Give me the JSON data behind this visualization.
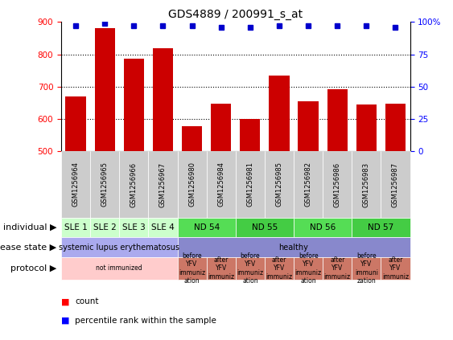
{
  "title": "GDS4889 / 200991_s_at",
  "samples": [
    "GSM1256964",
    "GSM1256965",
    "GSM1256966",
    "GSM1256967",
    "GSM1256980",
    "GSM1256984",
    "GSM1256981",
    "GSM1256985",
    "GSM1256982",
    "GSM1256986",
    "GSM1256983",
    "GSM1256987"
  ],
  "counts": [
    670,
    882,
    787,
    820,
    578,
    648,
    600,
    735,
    656,
    693,
    645,
    648
  ],
  "percentiles": [
    97,
    99,
    97,
    97,
    97,
    96,
    96,
    97,
    97,
    97,
    97,
    96
  ],
  "ylim": [
    500,
    900
  ],
  "yticks": [
    500,
    600,
    700,
    800,
    900
  ],
  "right_yticks_vals": [
    0,
    25,
    50,
    75,
    100
  ],
  "right_ytick_labels": [
    "0",
    "25",
    "50",
    "75",
    "100%"
  ],
  "bar_color": "#cc0000",
  "dot_color": "#0000cc",
  "individual_spans": [
    {
      "label": "SLE 1",
      "start": 0,
      "end": 1,
      "color": "#ccffcc"
    },
    {
      "label": "SLE 2",
      "start": 1,
      "end": 2,
      "color": "#ccffcc"
    },
    {
      "label": "SLE 3",
      "start": 2,
      "end": 3,
      "color": "#ccffcc"
    },
    {
      "label": "SLE 4",
      "start": 3,
      "end": 4,
      "color": "#ccffcc"
    },
    {
      "label": "ND 54",
      "start": 4,
      "end": 6,
      "color": "#55dd55"
    },
    {
      "label": "ND 55",
      "start": 6,
      "end": 8,
      "color": "#44cc44"
    },
    {
      "label": "ND 56",
      "start": 8,
      "end": 10,
      "color": "#55dd55"
    },
    {
      "label": "ND 57",
      "start": 10,
      "end": 12,
      "color": "#44cc44"
    }
  ],
  "disease_spans": [
    {
      "label": "systemic lupus erythematosus",
      "start": 0,
      "end": 4,
      "color": "#aaaaee"
    },
    {
      "label": "healthy",
      "start": 4,
      "end": 12,
      "color": "#8888cc"
    }
  ],
  "protocol_spans": [
    {
      "label": "not immunized",
      "start": 0,
      "end": 4,
      "color": "#ffcccc"
    },
    {
      "label": "before\nYFV\nimmuniz\nation",
      "start": 4,
      "end": 5,
      "color": "#cc7766"
    },
    {
      "label": "after\nYFV\nimmuniz",
      "start": 5,
      "end": 6,
      "color": "#cc7766"
    },
    {
      "label": "before\nYFV\nimmuniz\nation",
      "start": 6,
      "end": 7,
      "color": "#cc7766"
    },
    {
      "label": "after\nYFV\nimmuniz",
      "start": 7,
      "end": 8,
      "color": "#cc7766"
    },
    {
      "label": "before\nYFV\nimmuniz\nation",
      "start": 8,
      "end": 9,
      "color": "#cc7766"
    },
    {
      "label": "after\nYFV\nimmuniz",
      "start": 9,
      "end": 10,
      "color": "#cc7766"
    },
    {
      "label": "before\nYFV\nimmuni\nzation",
      "start": 10,
      "end": 11,
      "color": "#cc7766"
    },
    {
      "label": "after\nYFV\nimmuniz",
      "start": 11,
      "end": 12,
      "color": "#cc7766"
    }
  ],
  "bg_color": "#ffffff",
  "title_fontsize": 10,
  "tick_fontsize": 7.5,
  "sample_fontsize": 6,
  "row_label_fontsize": 8,
  "ind_fontsize": 7.5,
  "dis_fontsize": 7,
  "prot_fontsize": 5.5
}
